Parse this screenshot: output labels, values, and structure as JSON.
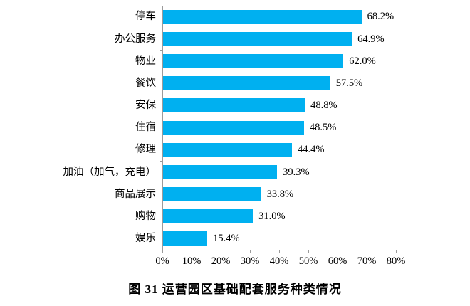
{
  "caption": "图 31 运营园区基础配套服务种类情况",
  "colors": {
    "bar": "#00B0F0",
    "axis": "#9b9b9b",
    "text": "#000000",
    "background": "#ffffff"
  },
  "chart_data": {
    "type": "bar",
    "orientation": "horizontal",
    "title": "",
    "xlabel": "",
    "ylabel": "",
    "grid": false,
    "legend_position": "none",
    "xlim": [
      0,
      80
    ],
    "x_tick_values": [
      0,
      10,
      20,
      30,
      40,
      50,
      60,
      70,
      80
    ],
    "x_tick_labels": [
      "0%",
      "10%",
      "20%",
      "30%",
      "40%",
      "50%",
      "60%",
      "70%",
      "80%"
    ],
    "categories": [
      "停车",
      "办公服务",
      "物业",
      "餐饮",
      "安保",
      "住宿",
      "修理",
      "加油（加气，充电）",
      "商品展示",
      "购物",
      "娱乐"
    ],
    "values": [
      68.2,
      64.9,
      62.0,
      57.5,
      48.8,
      48.5,
      44.4,
      39.3,
      33.8,
      31.0,
      15.4
    ],
    "value_labels": [
      "68.2%",
      "64.9%",
      "62.0%",
      "57.5%",
      "48.8%",
      "48.5%",
      "44.4%",
      "39.3%",
      "33.8%",
      "31.0%",
      "15.4%"
    ]
  }
}
